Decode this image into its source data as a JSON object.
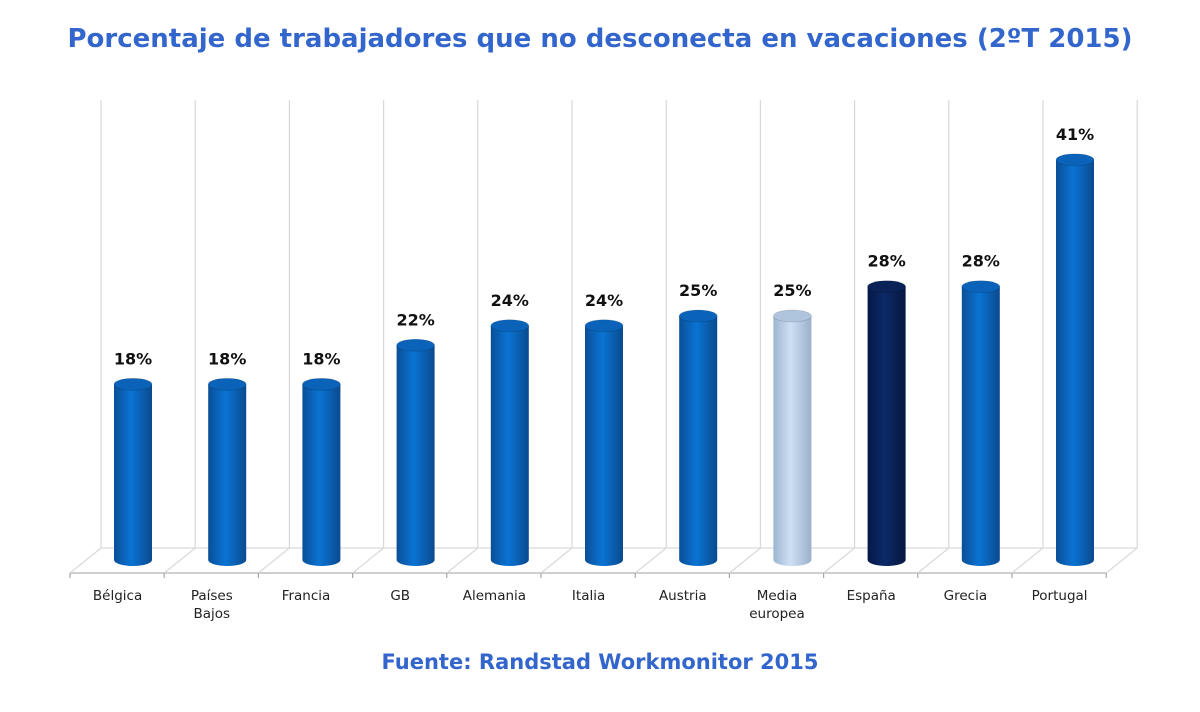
{
  "title": "Porcentaje de trabajadores que no desconecta en vacaciones (2ºT 2015)",
  "source": "Fuente: Randstad Workmonitor 2015",
  "colors": {
    "title": "#3366CC",
    "bar_default": "#0A66C2",
    "bar_highlight_spain": "#0B2460",
    "bar_average": "#BFD5EE",
    "gridline": "#D9D9D9"
  },
  "chart_data": {
    "type": "bar",
    "style": "3d-cylinder",
    "title": "Porcentaje de trabajadores que no desconecta en vacaciones (2ºT 2015)",
    "xlabel": "",
    "ylabel": "",
    "ylim": [
      0,
      45
    ],
    "grid": "vertical category gridlines",
    "legend": "none",
    "categories": [
      "Bélgica",
      "Países Bajos",
      "Francia",
      "GB",
      "Alemania",
      "Italia",
      "Austria",
      "Media europea",
      "España",
      "Grecia",
      "Portugal"
    ],
    "values": [
      18,
      18,
      18,
      22,
      24,
      24,
      25,
      25,
      28,
      28,
      41
    ],
    "data_labels": [
      "18%",
      "18%",
      "18%",
      "22%",
      "24%",
      "24%",
      "25%",
      "25%",
      "28%",
      "28%",
      "41%"
    ],
    "unit": "%",
    "highlights": {
      "Media europea": "light blue (average)",
      "España": "dark navy"
    },
    "annotation": "Fuente: Randstad Workmonitor 2015"
  }
}
